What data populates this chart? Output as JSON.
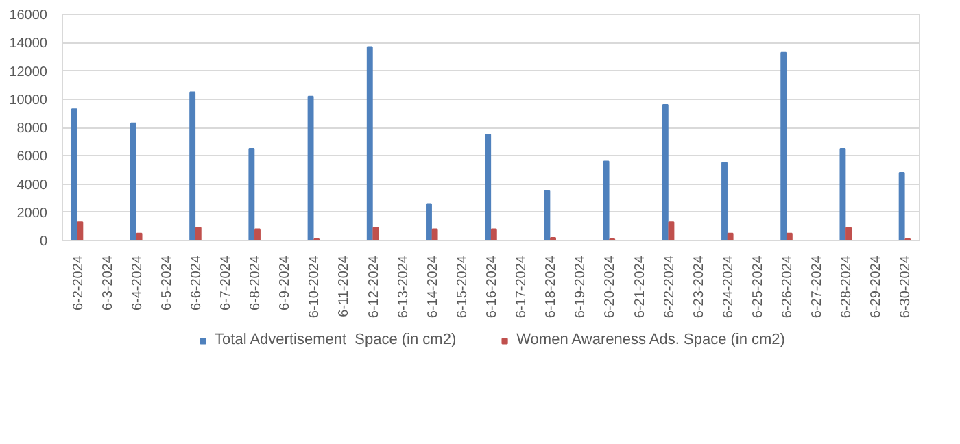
{
  "chart_data": {
    "type": "bar",
    "categories": [
      "6-2-2024",
      "6-3-2024",
      "6-4-2024",
      "6-5-2024",
      "6-6-2024",
      "6-7-2024",
      "6-8-2024",
      "6-9-2024",
      "6-10-2024",
      "6-11-2024",
      "6-12-2024",
      "6-13-2024",
      "6-14-2024",
      "6-15-2024",
      "6-16-2024",
      "6-17-2024",
      "6-18-2024",
      "6-19-2024",
      "6-20-2024",
      "6-21-2024",
      "6-22-2024",
      "6-23-2024",
      "6-24-2024",
      "6-25-2024",
      "6-26-2024",
      "6-27-2024",
      "6-28-2024",
      "6-29-2024",
      "6-30-2024"
    ],
    "series": [
      {
        "name": "Total Advertisement  Space (in cm2)",
        "color": "#4f81bd",
        "values": [
          9300,
          null,
          8300,
          null,
          10500,
          null,
          6500,
          null,
          10200,
          null,
          13700,
          null,
          2600,
          null,
          7500,
          null,
          3500,
          null,
          5600,
          null,
          9600,
          null,
          5500,
          null,
          13300,
          null,
          6500,
          null,
          4800
        ]
      },
      {
        "name": "Women Awareness Ads. Space (in cm2)",
        "color": "#c0504d",
        "values": [
          1300,
          null,
          500,
          null,
          900,
          null,
          800,
          null,
          100,
          null,
          900,
          null,
          800,
          null,
          800,
          null,
          200,
          null,
          100,
          null,
          1300,
          null,
          500,
          null,
          500,
          null,
          900,
          null,
          100
        ]
      }
    ],
    "ylim": [
      0,
      16000
    ],
    "yticks": [
      0,
      2000,
      4000,
      6000,
      8000,
      10000,
      12000,
      14000,
      16000
    ],
    "grid": "y",
    "legend": "bottom"
  }
}
